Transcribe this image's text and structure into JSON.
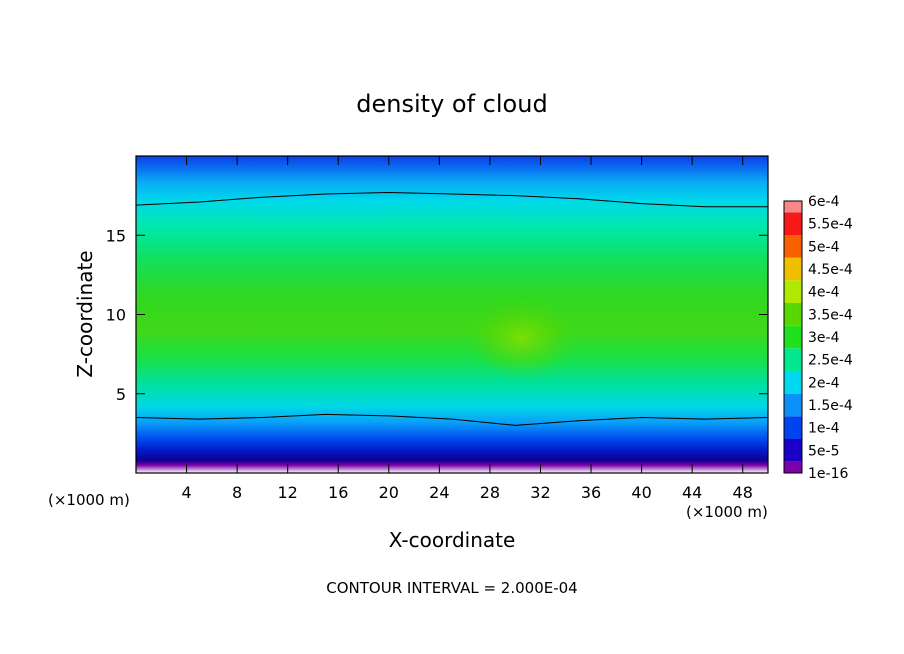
{
  "chart_data": {
    "type": "heatmap",
    "title": "density of cloud",
    "xlabel": "X-coordinate",
    "ylabel": "Z-coordinate",
    "x_unit": "(×1000 m)",
    "footer": "CONTOUR INTERVAL = 2.000E-04",
    "xlim": [
      0,
      50
    ],
    "ylim": [
      0,
      20
    ],
    "x_ticks": [
      4,
      8,
      12,
      16,
      20,
      24,
      28,
      32,
      36,
      40,
      44,
      48
    ],
    "y_ticks": [
      5,
      10,
      15
    ],
    "colorbar": {
      "labels": [
        "1e-16",
        "5e-5",
        "1e-4",
        "1.5e-4",
        "2e-4",
        "2.5e-4",
        "3e-4",
        "3.5e-4",
        "4e-4",
        "4.5e-4",
        "5e-4",
        "5.5e-4",
        "6e-4"
      ],
      "colors": [
        "#7a00a8",
        "#1c00c8",
        "#0044f0",
        "#0a90f8",
        "#00d8f0",
        "#00e890",
        "#20e020",
        "#58d800",
        "#b0e800",
        "#f0c000",
        "#f86000",
        "#f81818",
        "#f88888"
      ]
    },
    "profile": {
      "x": [
        0,
        5,
        10,
        15,
        20,
        25,
        30,
        35,
        40,
        45,
        50
      ],
      "top_contour_z": [
        16.9,
        17.1,
        17.4,
        17.6,
        17.7,
        17.6,
        17.5,
        17.3,
        17.0,
        16.8,
        16.8
      ],
      "base_contour_z": [
        3.5,
        3.4,
        3.5,
        3.7,
        3.6,
        3.4,
        3.0,
        3.3,
        3.5,
        3.4,
        3.5
      ],
      "max_density_center": [
        30.5,
        8.5
      ]
    }
  }
}
